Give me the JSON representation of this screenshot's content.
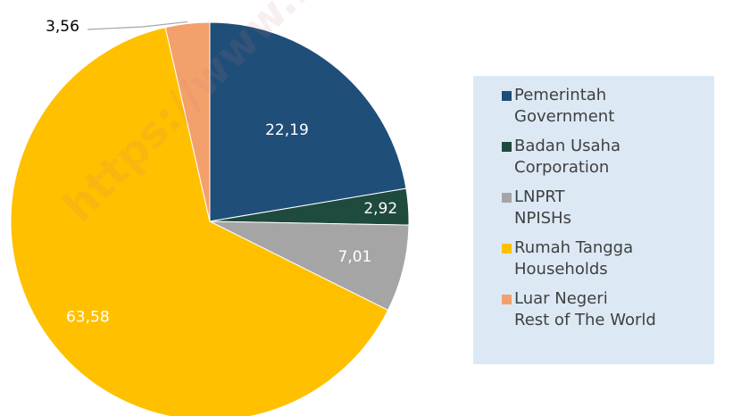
{
  "chart_data": {
    "type": "pie",
    "categories": [
      "Pemerintah\nGovernment",
      "Badan Usaha\nCorporation",
      "LNPRT\nNPISHs",
      "Rumah Tangga\nHouseholds",
      "Luar Negeri\nRest of The World"
    ],
    "values": [
      22.19,
      2.92,
      7.01,
      63.58,
      3.56
    ],
    "value_labels": [
      "22,19",
      "2,92",
      "7,01",
      "63,58",
      "3,56"
    ],
    "colors": [
      "#1f4e79",
      "#1f4a3e",
      "#a5a5a5",
      "#ffc000",
      "#f4a06c"
    ],
    "watermark": "https://www.bps.go.id"
  }
}
